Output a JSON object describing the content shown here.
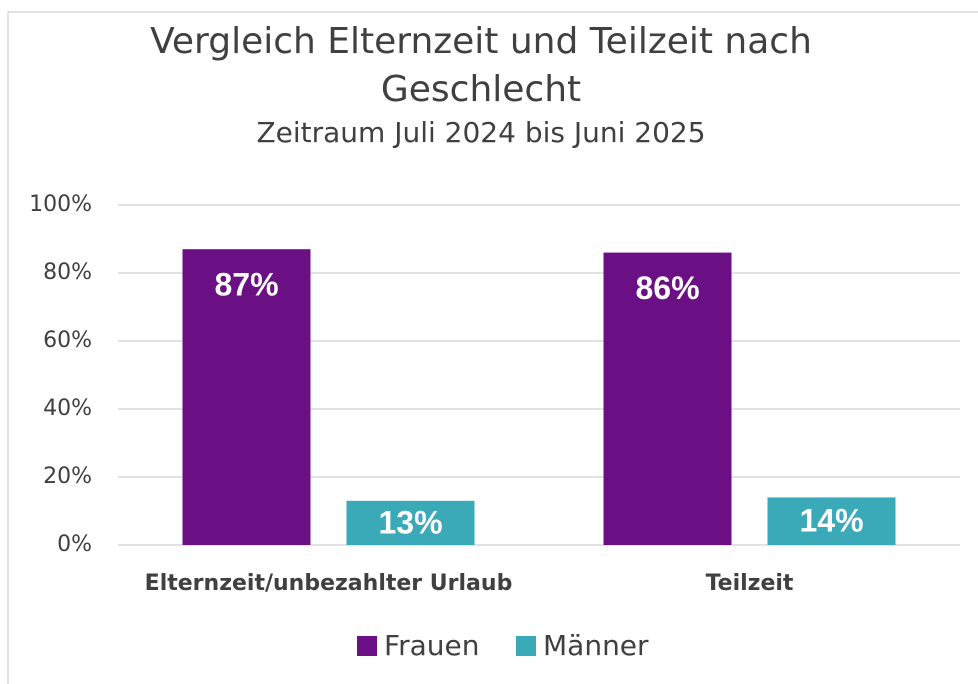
{
  "chart_data": {
    "type": "bar",
    "title": "Vergleich Elternzeit und Teilzeit nach Geschlecht",
    "subtitle": "Zeitraum Juli 2024 bis Juni 2025",
    "categories": [
      "Elternzeit/unbezahlter Urlaub",
      "Teilzeit"
    ],
    "series": [
      {
        "name": "Frauen",
        "color": "#6b0f85",
        "values": [
          87,
          86
        ],
        "value_labels": [
          "87%",
          "86%"
        ]
      },
      {
        "name": "Männer",
        "color": "#3aa9b8",
        "values": [
          13,
          14
        ],
        "value_labels": [
          "13%",
          "14%"
        ]
      }
    ],
    "ylim": [
      0,
      100
    ],
    "yticks": [
      {
        "value": 0,
        "label": "0%"
      },
      {
        "value": 20,
        "label": "20%"
      },
      {
        "value": 40,
        "label": "40%"
      },
      {
        "value": 60,
        "label": "60%"
      },
      {
        "value": 80,
        "label": "80%"
      },
      {
        "value": 100,
        "label": "100%"
      }
    ],
    "grid": true
  }
}
